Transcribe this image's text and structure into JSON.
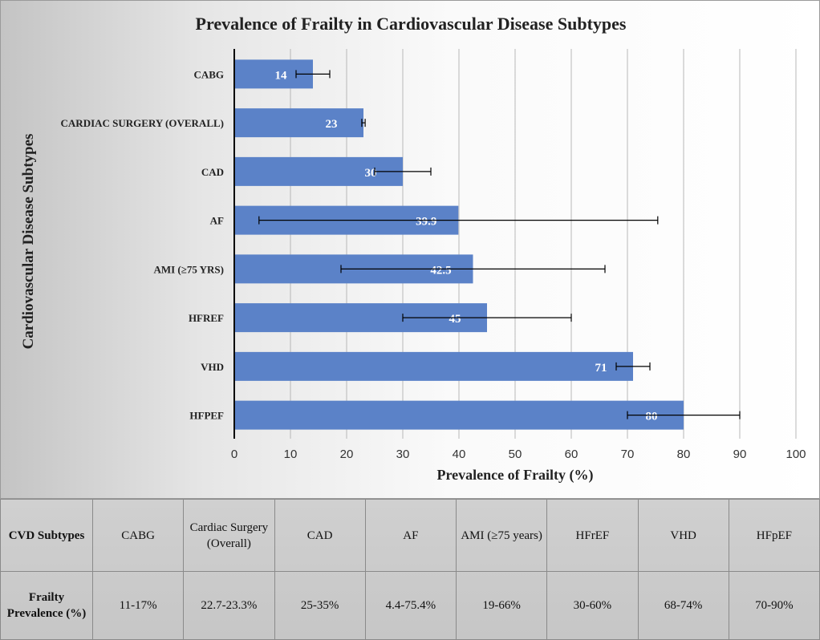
{
  "chart_data": {
    "type": "bar",
    "orientation": "horizontal",
    "title": "Prevalence of Frailty in Cardiovascular Disease Subtypes",
    "xlabel": "Prevalence of Frailty  (%)",
    "ylabel": "Cardiovascular Disease Subtypes",
    "xlim": [
      0,
      100
    ],
    "xticks": [
      0,
      10,
      20,
      30,
      40,
      50,
      60,
      70,
      80,
      90,
      100
    ],
    "grid": true,
    "bar_color": "#5b82c8",
    "categories": [
      "CABG",
      "CARDIAC  SURGERY  (OVERALL)",
      "CAD",
      "AF",
      "AMI  (≥75 YRS)",
      "HFREF",
      "VHD",
      "HFPEF"
    ],
    "values": [
      14,
      23,
      30,
      39.9,
      42.5,
      45,
      71,
      80
    ],
    "value_labels": [
      "14",
      "23",
      "30",
      "39.9",
      "42.5",
      "45",
      "71",
      "80"
    ],
    "error_low": [
      11,
      22.7,
      25,
      4.4,
      19,
      30,
      68,
      70
    ],
    "error_high": [
      17,
      23.3,
      35,
      75.4,
      66,
      60,
      74,
      90
    ]
  },
  "table": {
    "row_headers": [
      "CVD Subtypes",
      "Frailty Prevalence (%)"
    ],
    "subtypes": [
      "CABG",
      "Cardiac Surgery (Overall)",
      "CAD",
      "AF",
      "AMI (≥75 years)",
      "HFrEF",
      "VHD",
      "HFpEF"
    ],
    "prevalence": [
      "11-17%",
      "22.7-23.3%",
      "25-35%",
      "4.4-75.4%",
      "19-66%",
      "30-60%",
      "68-74%",
      "70-90%"
    ]
  }
}
